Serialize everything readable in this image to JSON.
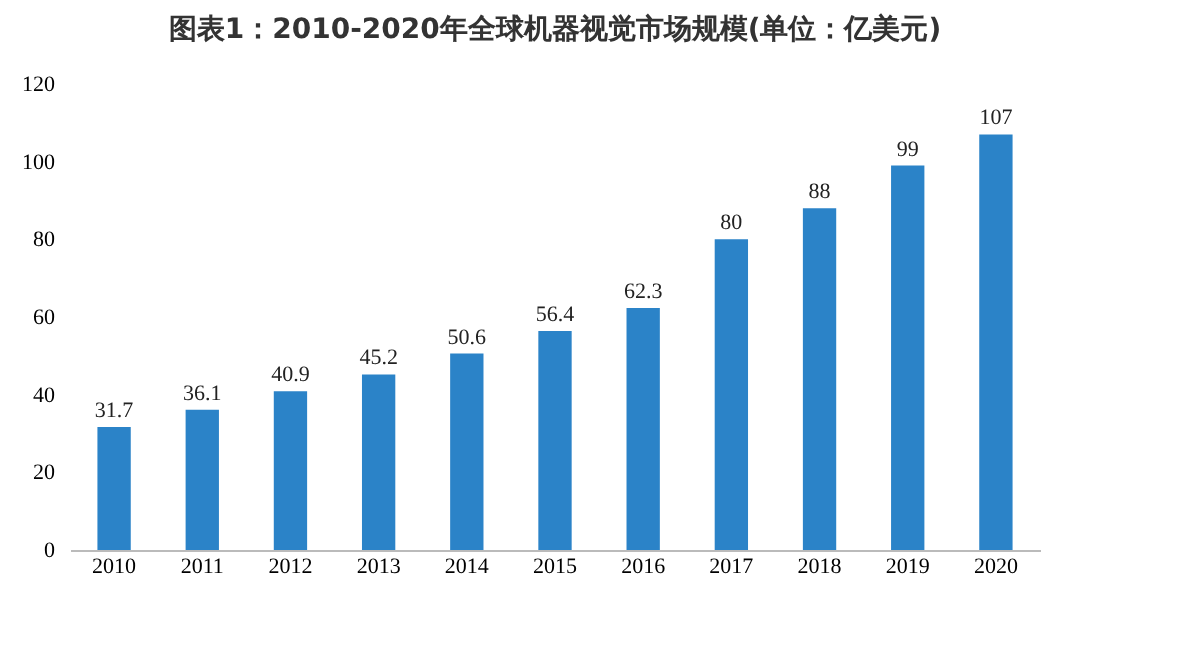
{
  "chart_data": {
    "type": "bar",
    "title": "图表1：2010-2020年全球机器视觉市场规模(单位：亿美元)",
    "categories": [
      "2010",
      "2011",
      "2012",
      "2013",
      "2014",
      "2015",
      "2016",
      "2017",
      "2018",
      "2019",
      "2020"
    ],
    "values": [
      31.7,
      36.1,
      40.9,
      45.2,
      50.6,
      56.4,
      62.3,
      80,
      88,
      99,
      107
    ],
    "color": "#2b83c8",
    "ylim": [
      0,
      120
    ],
    "yticks": [
      0,
      20,
      40,
      60,
      80,
      100,
      120
    ],
    "grid": false,
    "data_labels": true
  }
}
